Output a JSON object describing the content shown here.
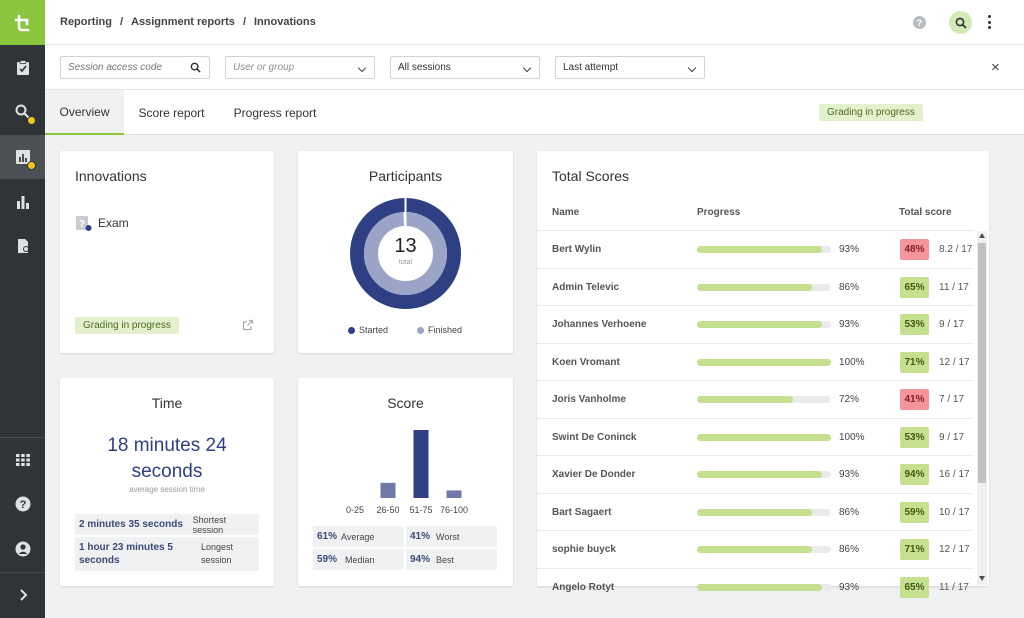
{
  "breadcrumb": [
    "Reporting",
    "Assignment reports",
    "Innovations"
  ],
  "breadcrumb_sep": "/",
  "header": {
    "help_icon": "?"
  },
  "filters": {
    "session_code_placeholder": "Session access code",
    "user_group_placeholder": "User or group",
    "sessions_value": "All sessions",
    "attempt_value": "Last attempt",
    "close": "×"
  },
  "tabs": [
    "Overview",
    "Score report",
    "Progress report"
  ],
  "status_badge": "Grading in progress",
  "innovations": {
    "title": "Innovations",
    "item": "Exam",
    "badge": "Grading in progress"
  },
  "participants": {
    "title": "Participants",
    "total": "13",
    "total_label": "total",
    "legend": [
      {
        "label": "Started",
        "color": "#2e3f84"
      },
      {
        "label": "Finished",
        "color": "#9ba3c6"
      }
    ],
    "finished_fraction": 0.99
  },
  "time": {
    "title": "Time",
    "value_line1": "18 minutes 24",
    "value_line2": "seconds",
    "subtitle": "average session time",
    "rows": [
      {
        "value": "2 minutes 35 seconds",
        "label": "Shortest session"
      },
      {
        "value_line1": "1 hour 23 minutes 5",
        "value_line2": "seconds",
        "label_line1": "Longest",
        "label_line2": "session"
      }
    ]
  },
  "score": {
    "title": "Score",
    "stats": [
      {
        "value": "61%",
        "label": "Average"
      },
      {
        "value": "41%",
        "label": "Worst"
      },
      {
        "value": "59%",
        "label": "Median"
      },
      {
        "value": "94%",
        "label": "Best"
      }
    ]
  },
  "chart_data": {
    "type": "bar",
    "categories": [
      "0-25",
      "26-50",
      "51-75",
      "76-100"
    ],
    "values": [
      0,
      2,
      9,
      1
    ],
    "color": "#2e3f84"
  },
  "total_scores": {
    "title": "Total Scores",
    "columns": [
      "Name",
      "Progress",
      "Total score"
    ],
    "rows": [
      {
        "name": "Bert Wylin",
        "progress": 93,
        "progress_label": "93%",
        "score": "48%",
        "raw": "8.2 / 17",
        "fail": true
      },
      {
        "name": "Admin Televic",
        "progress": 86,
        "progress_label": "86%",
        "score": "65%",
        "raw": "11 / 17",
        "fail": false
      },
      {
        "name": "Johannes Verhoene",
        "progress": 93,
        "progress_label": "93%",
        "score": "53%",
        "raw": "9 / 17",
        "fail": false
      },
      {
        "name": "Koen Vromant",
        "progress": 100,
        "progress_label": "100%",
        "score": "71%",
        "raw": "12 / 17",
        "fail": false
      },
      {
        "name": "Joris Vanholme",
        "progress": 72,
        "progress_label": "72%",
        "score": "41%",
        "raw": "7 / 17",
        "fail": true
      },
      {
        "name": "Swint De Coninck",
        "progress": 100,
        "progress_label": "100%",
        "score": "53%",
        "raw": "9 / 17",
        "fail": false
      },
      {
        "name": "Xavier De Donder",
        "progress": 93,
        "progress_label": "93%",
        "score": "94%",
        "raw": "16 / 17",
        "fail": false
      },
      {
        "name": "Bart Sagaert",
        "progress": 86,
        "progress_label": "86%",
        "score": "59%",
        "raw": "10 / 17",
        "fail": false
      },
      {
        "name": "sophie buyck",
        "progress": 86,
        "progress_label": "86%",
        "score": "71%",
        "raw": "12 / 17",
        "fail": false
      },
      {
        "name": "Angelo Rotyt",
        "progress": 93,
        "progress_label": "93%",
        "score": "65%",
        "raw": "11 / 17",
        "fail": false
      }
    ]
  },
  "colors": {
    "accent": "#8cc63f",
    "pass_bg": "#c5e08f",
    "fail_bg": "#f4949b",
    "navy": "#2e3f84"
  }
}
